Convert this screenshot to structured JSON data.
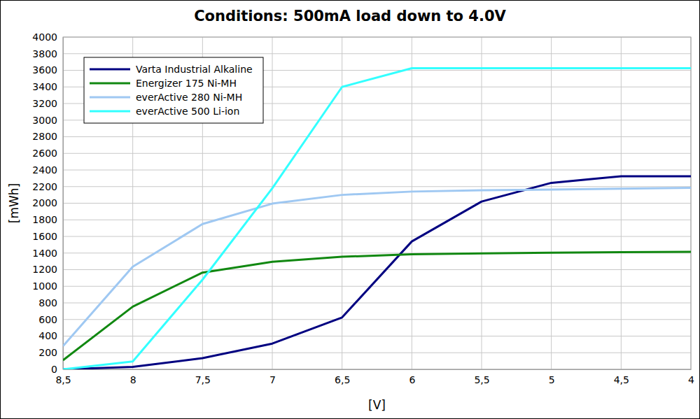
{
  "chart_data": {
    "type": "line",
    "title": "Conditions: 500mA load down to 4.0V",
    "x_label": "[V]",
    "y_label": "[mWh]",
    "x": [
      8.5,
      8,
      7.5,
      7,
      6.5,
      6,
      5.5,
      5,
      4.5,
      4
    ],
    "xlim": [
      8.5,
      4
    ],
    "xticks": [
      {
        "value": 8.5,
        "label": "8,5"
      },
      8,
      {
        "value": 7.5,
        "label": "7,5"
      },
      7,
      {
        "value": 6.5,
        "label": "6,5"
      },
      6,
      {
        "value": 5.5,
        "label": "5,5"
      },
      5,
      {
        "value": 4.5,
        "label": "4,5"
      },
      4
    ],
    "ylim": [
      0,
      4000
    ],
    "yticks": [
      0,
      200,
      400,
      600,
      800,
      1000,
      1200,
      1400,
      1600,
      1800,
      2000,
      2200,
      2400,
      2600,
      2800,
      3000,
      3200,
      3400,
      3600,
      3800,
      4000
    ],
    "grid": true,
    "legend": "top-left",
    "series": [
      {
        "name": "Varta Industrial Alkaline",
        "color": "#000080",
        "values": [
          0,
          30,
          135,
          310,
          625,
          1540,
          2020,
          2245,
          2325,
          2325
        ]
      },
      {
        "name": "Energizer 175 Ni-MH",
        "color": "#118811",
        "values": [
          110,
          755,
          1165,
          1295,
          1355,
          1385,
          1395,
          1405,
          1410,
          1415
        ]
      },
      {
        "name": "everActive 280 Ni-MH",
        "color": "#9fc8f2",
        "values": [
          280,
          1235,
          1750,
          1995,
          2100,
          2140,
          2155,
          2165,
          2175,
          2185
        ]
      },
      {
        "name": "everActive 500 Li-ion",
        "color": "#33ffff",
        "values": [
          0,
          95,
          1080,
          2180,
          3400,
          3625,
          3625,
          3625,
          3625,
          3625
        ]
      }
    ]
  }
}
